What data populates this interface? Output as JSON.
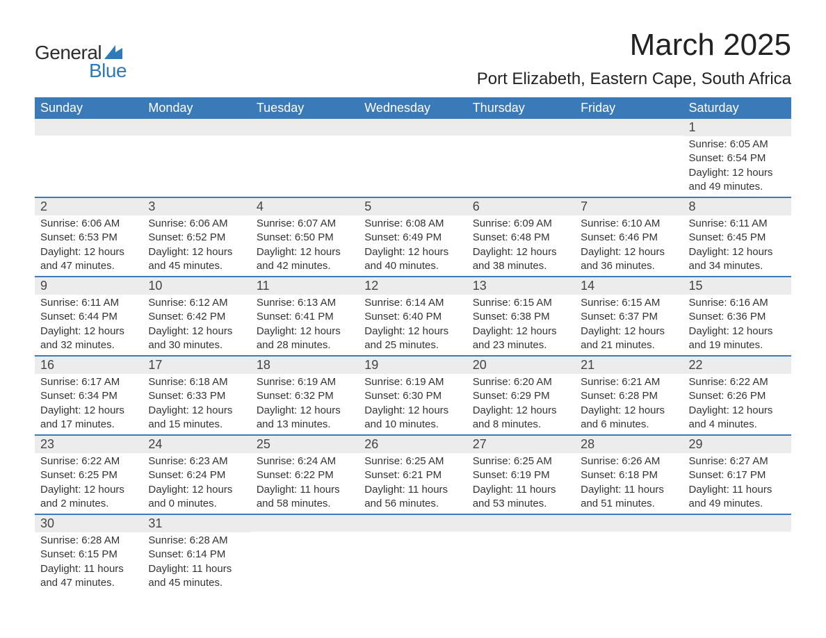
{
  "logo": {
    "word1": "General",
    "word2": "Blue",
    "word1_color": "#2d2d2d",
    "word2_color": "#2f7ab8",
    "sail_color": "#2f7ab8"
  },
  "title": "March 2025",
  "location": "Port Elizabeth, Eastern Cape, South Africa",
  "header_bg": "#3b7ab8",
  "header_fg": "#ffffff",
  "daynum_bg": "#ececec",
  "row_divider": "#3b7ab8",
  "text_color": "#333333",
  "day_headers": [
    "Sunday",
    "Monday",
    "Tuesday",
    "Wednesday",
    "Thursday",
    "Friday",
    "Saturday"
  ],
  "weeks": [
    [
      null,
      null,
      null,
      null,
      null,
      null,
      {
        "n": "1",
        "sr": "Sunrise: 6:05 AM",
        "ss": "Sunset: 6:54 PM",
        "dl1": "Daylight: 12 hours",
        "dl2": "and 49 minutes."
      }
    ],
    [
      {
        "n": "2",
        "sr": "Sunrise: 6:06 AM",
        "ss": "Sunset: 6:53 PM",
        "dl1": "Daylight: 12 hours",
        "dl2": "and 47 minutes."
      },
      {
        "n": "3",
        "sr": "Sunrise: 6:06 AM",
        "ss": "Sunset: 6:52 PM",
        "dl1": "Daylight: 12 hours",
        "dl2": "and 45 minutes."
      },
      {
        "n": "4",
        "sr": "Sunrise: 6:07 AM",
        "ss": "Sunset: 6:50 PM",
        "dl1": "Daylight: 12 hours",
        "dl2": "and 42 minutes."
      },
      {
        "n": "5",
        "sr": "Sunrise: 6:08 AM",
        "ss": "Sunset: 6:49 PM",
        "dl1": "Daylight: 12 hours",
        "dl2": "and 40 minutes."
      },
      {
        "n": "6",
        "sr": "Sunrise: 6:09 AM",
        "ss": "Sunset: 6:48 PM",
        "dl1": "Daylight: 12 hours",
        "dl2": "and 38 minutes."
      },
      {
        "n": "7",
        "sr": "Sunrise: 6:10 AM",
        "ss": "Sunset: 6:46 PM",
        "dl1": "Daylight: 12 hours",
        "dl2": "and 36 minutes."
      },
      {
        "n": "8",
        "sr": "Sunrise: 6:11 AM",
        "ss": "Sunset: 6:45 PM",
        "dl1": "Daylight: 12 hours",
        "dl2": "and 34 minutes."
      }
    ],
    [
      {
        "n": "9",
        "sr": "Sunrise: 6:11 AM",
        "ss": "Sunset: 6:44 PM",
        "dl1": "Daylight: 12 hours",
        "dl2": "and 32 minutes."
      },
      {
        "n": "10",
        "sr": "Sunrise: 6:12 AM",
        "ss": "Sunset: 6:42 PM",
        "dl1": "Daylight: 12 hours",
        "dl2": "and 30 minutes."
      },
      {
        "n": "11",
        "sr": "Sunrise: 6:13 AM",
        "ss": "Sunset: 6:41 PM",
        "dl1": "Daylight: 12 hours",
        "dl2": "and 28 minutes."
      },
      {
        "n": "12",
        "sr": "Sunrise: 6:14 AM",
        "ss": "Sunset: 6:40 PM",
        "dl1": "Daylight: 12 hours",
        "dl2": "and 25 minutes."
      },
      {
        "n": "13",
        "sr": "Sunrise: 6:15 AM",
        "ss": "Sunset: 6:38 PM",
        "dl1": "Daylight: 12 hours",
        "dl2": "and 23 minutes."
      },
      {
        "n": "14",
        "sr": "Sunrise: 6:15 AM",
        "ss": "Sunset: 6:37 PM",
        "dl1": "Daylight: 12 hours",
        "dl2": "and 21 minutes."
      },
      {
        "n": "15",
        "sr": "Sunrise: 6:16 AM",
        "ss": "Sunset: 6:36 PM",
        "dl1": "Daylight: 12 hours",
        "dl2": "and 19 minutes."
      }
    ],
    [
      {
        "n": "16",
        "sr": "Sunrise: 6:17 AM",
        "ss": "Sunset: 6:34 PM",
        "dl1": "Daylight: 12 hours",
        "dl2": "and 17 minutes."
      },
      {
        "n": "17",
        "sr": "Sunrise: 6:18 AM",
        "ss": "Sunset: 6:33 PM",
        "dl1": "Daylight: 12 hours",
        "dl2": "and 15 minutes."
      },
      {
        "n": "18",
        "sr": "Sunrise: 6:19 AM",
        "ss": "Sunset: 6:32 PM",
        "dl1": "Daylight: 12 hours",
        "dl2": "and 13 minutes."
      },
      {
        "n": "19",
        "sr": "Sunrise: 6:19 AM",
        "ss": "Sunset: 6:30 PM",
        "dl1": "Daylight: 12 hours",
        "dl2": "and 10 minutes."
      },
      {
        "n": "20",
        "sr": "Sunrise: 6:20 AM",
        "ss": "Sunset: 6:29 PM",
        "dl1": "Daylight: 12 hours",
        "dl2": "and 8 minutes."
      },
      {
        "n": "21",
        "sr": "Sunrise: 6:21 AM",
        "ss": "Sunset: 6:28 PM",
        "dl1": "Daylight: 12 hours",
        "dl2": "and 6 minutes."
      },
      {
        "n": "22",
        "sr": "Sunrise: 6:22 AM",
        "ss": "Sunset: 6:26 PM",
        "dl1": "Daylight: 12 hours",
        "dl2": "and 4 minutes."
      }
    ],
    [
      {
        "n": "23",
        "sr": "Sunrise: 6:22 AM",
        "ss": "Sunset: 6:25 PM",
        "dl1": "Daylight: 12 hours",
        "dl2": "and 2 minutes."
      },
      {
        "n": "24",
        "sr": "Sunrise: 6:23 AM",
        "ss": "Sunset: 6:24 PM",
        "dl1": "Daylight: 12 hours",
        "dl2": "and 0 minutes."
      },
      {
        "n": "25",
        "sr": "Sunrise: 6:24 AM",
        "ss": "Sunset: 6:22 PM",
        "dl1": "Daylight: 11 hours",
        "dl2": "and 58 minutes."
      },
      {
        "n": "26",
        "sr": "Sunrise: 6:25 AM",
        "ss": "Sunset: 6:21 PM",
        "dl1": "Daylight: 11 hours",
        "dl2": "and 56 minutes."
      },
      {
        "n": "27",
        "sr": "Sunrise: 6:25 AM",
        "ss": "Sunset: 6:19 PM",
        "dl1": "Daylight: 11 hours",
        "dl2": "and 53 minutes."
      },
      {
        "n": "28",
        "sr": "Sunrise: 6:26 AM",
        "ss": "Sunset: 6:18 PM",
        "dl1": "Daylight: 11 hours",
        "dl2": "and 51 minutes."
      },
      {
        "n": "29",
        "sr": "Sunrise: 6:27 AM",
        "ss": "Sunset: 6:17 PM",
        "dl1": "Daylight: 11 hours",
        "dl2": "and 49 minutes."
      }
    ],
    [
      {
        "n": "30",
        "sr": "Sunrise: 6:28 AM",
        "ss": "Sunset: 6:15 PM",
        "dl1": "Daylight: 11 hours",
        "dl2": "and 47 minutes."
      },
      {
        "n": "31",
        "sr": "Sunrise: 6:28 AM",
        "ss": "Sunset: 6:14 PM",
        "dl1": "Daylight: 11 hours",
        "dl2": "and 45 minutes."
      },
      null,
      null,
      null,
      null,
      null
    ]
  ]
}
